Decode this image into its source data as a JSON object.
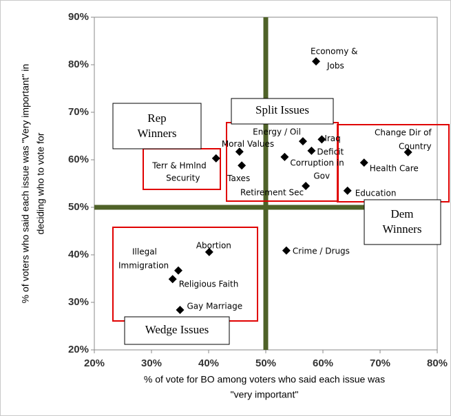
{
  "chart_data": {
    "type": "scatter",
    "x_label": [
      "% of vote for BO among voters who said each issue was",
      "\"very important\""
    ],
    "y_label": [
      "% of voters who said each issue was \"Very important\" in",
      "deciding who to vote for"
    ],
    "labels": [
      [
        "Economy &",
        "Jobs"
      ],
      [
        "Energy / Oil"
      ],
      [
        "Iraq"
      ],
      [
        "Deficit"
      ],
      [
        "Moral Values"
      ],
      [
        "Terr & Hmlnd",
        "Security"
      ],
      [
        "Taxes"
      ],
      [
        "Corruption in",
        "Gov"
      ],
      [
        "Retirement Sec"
      ],
      [
        "Change Dir of",
        "Country"
      ],
      [
        "Health Care"
      ],
      [
        "Education"
      ],
      [
        "Abortion"
      ],
      [
        "Crime / Drugs"
      ],
      [
        "Illegal",
        "Immigration"
      ],
      [
        "Religious Faith"
      ],
      [
        "Gay Marriage"
      ]
    ],
    "x": [
      58.8,
      56.5,
      59.8,
      58,
      45.4,
      41.3,
      45.8,
      53.3,
      57,
      74.9,
      67.2,
      64.3,
      40.1,
      53.6,
      34.7,
      33.7,
      35
    ],
    "values": [
      80.7,
      63.9,
      64.3,
      61.9,
      61.7,
      60.3,
      58.8,
      60.6,
      54.5,
      61.6,
      59.4,
      53.5,
      40.6,
      40.9,
      36.7,
      34.9,
      28.4
    ],
    "color": "#000000",
    "annotations": [
      "Rep Winners",
      "Split Issues",
      "Dem Winners",
      "Wedge Issues"
    ],
    "reference_lines": {
      "x": 50,
      "y": 50,
      "color": "#4f6228"
    },
    "xlim": [
      20,
      80
    ],
    "xticks": [
      {
        "value": 20,
        "label": "20%"
      },
      {
        "value": 30,
        "label": "30%"
      },
      {
        "value": 40,
        "label": "40%"
      },
      {
        "value": 50,
        "label": "50%"
      },
      {
        "value": 60,
        "label": "60%"
      },
      {
        "value": 70,
        "label": "70%"
      },
      {
        "value": 80,
        "label": "80%"
      }
    ],
    "ylim": [
      20,
      90
    ],
    "yticks": [
      {
        "value": 20,
        "label": "20%"
      },
      {
        "value": 30,
        "label": "30%"
      },
      {
        "value": 40,
        "label": "40%"
      },
      {
        "value": 50,
        "label": "50%"
      },
      {
        "value": 60,
        "label": "60%"
      },
      {
        "value": 70,
        "label": "70%"
      },
      {
        "value": 80,
        "label": "80%"
      },
      {
        "value": 90,
        "label": "90%"
      }
    ]
  }
}
